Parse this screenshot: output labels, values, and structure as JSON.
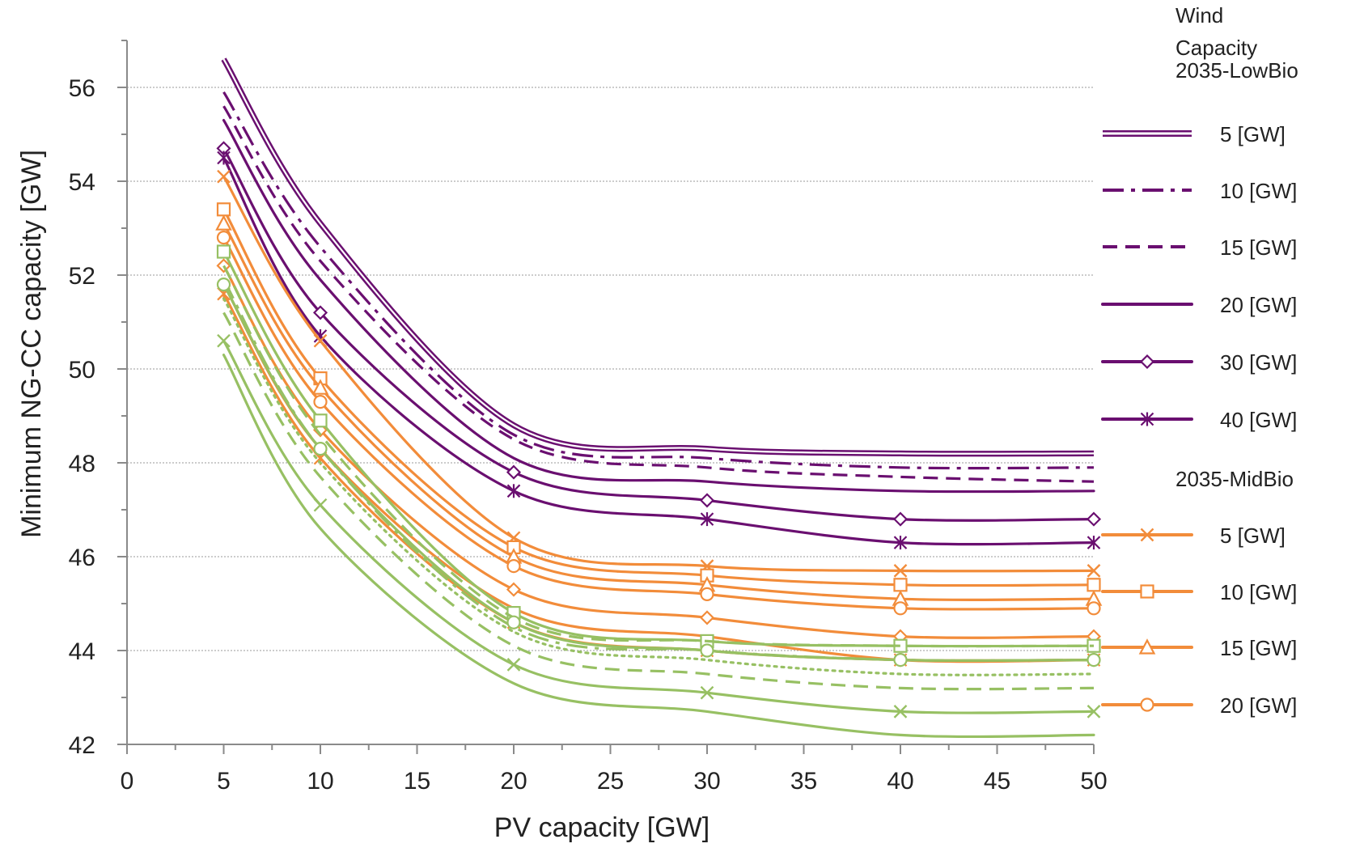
{
  "chart_data": {
    "type": "line",
    "xlabel": "PV capacity [GW]",
    "ylabel": "Minimum NG-CC capacity [GW]",
    "xlim": [
      0,
      50
    ],
    "ylim": [
      42,
      57
    ],
    "xticks": [
      "0",
      "5",
      "10",
      "15",
      "20",
      "25",
      "30",
      "35",
      "40",
      "45",
      "50"
    ],
    "yticks": [
      "42",
      "44",
      "46",
      "48",
      "50",
      "52",
      "54",
      "56"
    ],
    "grid": "horizontal-dotted",
    "x": [
      5,
      10,
      20,
      30,
      40,
      50
    ],
    "legend": {
      "placement": "right",
      "title_lines": [
        "Wind",
        "Capacity",
        "2035-LowBio"
      ],
      "group2_title": "2035-MidBio",
      "entries": [
        {
          "label": "5 [GW]",
          "color": "#6a0f70",
          "style": "double",
          "marker": "none"
        },
        {
          "label": "10 [GW]",
          "color": "#6a0f70",
          "style": "dashdot",
          "marker": "none"
        },
        {
          "label": "15 [GW]",
          "color": "#6a0f70",
          "style": "dash",
          "marker": "none"
        },
        {
          "label": "20 [GW]",
          "color": "#6a0f70",
          "style": "solid",
          "marker": "none"
        },
        {
          "label": "30 [GW]",
          "color": "#6a0f70",
          "style": "solid",
          "marker": "diamond"
        },
        {
          "label": "40 [GW]",
          "color": "#6a0f70",
          "style": "solid",
          "marker": "asterisk"
        },
        {
          "label": "5 [GW]",
          "color": "#f28c3a",
          "style": "solid",
          "marker": "x"
        },
        {
          "label": "10 [GW]",
          "color": "#f28c3a",
          "style": "solid",
          "marker": "square"
        },
        {
          "label": "15 [GW]",
          "color": "#f28c3a",
          "style": "solid",
          "marker": "triangle"
        },
        {
          "label": "20 [GW]",
          "color": "#f28c3a",
          "style": "solid",
          "marker": "circle"
        }
      ]
    },
    "series": [
      {
        "name": "2035-LowBio 5 [GW]",
        "color": "#6a0f70",
        "style": "double",
        "marker": "none",
        "values": [
          56.6,
          53.1,
          48.8,
          48.3,
          48.2,
          48.2
        ]
      },
      {
        "name": "2035-LowBio 10 [GW]",
        "color": "#6a0f70",
        "style": "dashdot",
        "marker": "none",
        "values": [
          55.9,
          52.6,
          48.6,
          48.1,
          47.9,
          47.9
        ]
      },
      {
        "name": "2035-LowBio 15 [GW]",
        "color": "#6a0f70",
        "style": "dash",
        "marker": "none",
        "values": [
          55.6,
          52.3,
          48.5,
          47.9,
          47.7,
          47.6
        ]
      },
      {
        "name": "2035-LowBio 20 [GW]",
        "color": "#6a0f70",
        "style": "solid",
        "marker": "none",
        "values": [
          55.3,
          51.9,
          48.1,
          47.6,
          47.4,
          47.4
        ]
      },
      {
        "name": "2035-LowBio 30 [GW]",
        "color": "#6a0f70",
        "style": "solid",
        "marker": "diamond",
        "values": [
          54.7,
          51.2,
          47.8,
          47.2,
          46.8,
          46.8
        ]
      },
      {
        "name": "2035-LowBio 40 [GW]",
        "color": "#6a0f70",
        "style": "solid",
        "marker": "asterisk",
        "values": [
          54.5,
          50.7,
          47.4,
          46.8,
          46.3,
          46.3
        ]
      },
      {
        "color": "#f28c3a",
        "style": "solid",
        "marker": "x",
        "values": [
          54.1,
          50.6,
          46.4,
          45.8,
          45.7,
          45.7
        ]
      },
      {
        "color": "#f28c3a",
        "style": "solid",
        "marker": "square",
        "values": [
          53.4,
          49.8,
          46.2,
          45.6,
          45.4,
          45.4
        ]
      },
      {
        "color": "#f28c3a",
        "style": "solid",
        "marker": "triangle",
        "values": [
          53.1,
          49.6,
          46.0,
          45.4,
          45.1,
          45.1
        ]
      },
      {
        "color": "#f28c3a",
        "style": "solid",
        "marker": "circle",
        "values": [
          52.8,
          49.3,
          45.8,
          45.2,
          44.9,
          44.9
        ]
      },
      {
        "color": "#f28c3a",
        "style": "solid",
        "marker": "diamond",
        "values": [
          52.2,
          48.7,
          45.3,
          44.7,
          44.3,
          44.3
        ]
      },
      {
        "color": "#f28c3a",
        "style": "solid",
        "marker": "none",
        "values": [
          51.8,
          48.3,
          44.9,
          44.3,
          43.8,
          43.8
        ]
      },
      {
        "color": "#f28c3a",
        "style": "solid",
        "marker": "asterisk",
        "values": [
          51.6,
          48.1,
          44.6,
          44.0,
          43.8,
          43.8
        ]
      },
      {
        "color": "#97c063",
        "style": "solid",
        "marker": "square",
        "values": [
          52.5,
          48.9,
          44.8,
          44.2,
          44.1,
          44.1
        ]
      },
      {
        "color": "#97c063",
        "style": "dash",
        "marker": "none",
        "values": [
          52.2,
          48.6,
          44.7,
          44.2,
          44.1,
          44.1
        ]
      },
      {
        "color": "#97c063",
        "style": "dashdot",
        "marker": "none",
        "values": [
          51.9,
          48.3,
          44.5,
          44.0,
          43.8,
          43.8
        ]
      },
      {
        "color": "#97c063",
        "style": "solid",
        "marker": "circle",
        "values": [
          51.8,
          48.3,
          44.6,
          44.0,
          43.8,
          43.8
        ]
      },
      {
        "color": "#97c063",
        "style": "dot",
        "marker": "none",
        "values": [
          51.5,
          48.0,
          44.4,
          43.8,
          43.5,
          43.5
        ]
      },
      {
        "color": "#97c063",
        "style": "dash",
        "marker": "none",
        "values": [
          51.2,
          47.7,
          44.1,
          43.5,
          43.2,
          43.2
        ]
      },
      {
        "color": "#97c063",
        "style": "solid",
        "marker": "x",
        "values": [
          50.6,
          47.1,
          43.7,
          43.1,
          42.7,
          42.7
        ]
      },
      {
        "color": "#97c063",
        "style": "solid",
        "marker": "none",
        "values": [
          50.3,
          46.6,
          43.3,
          42.7,
          42.2,
          42.2
        ]
      }
    ]
  }
}
